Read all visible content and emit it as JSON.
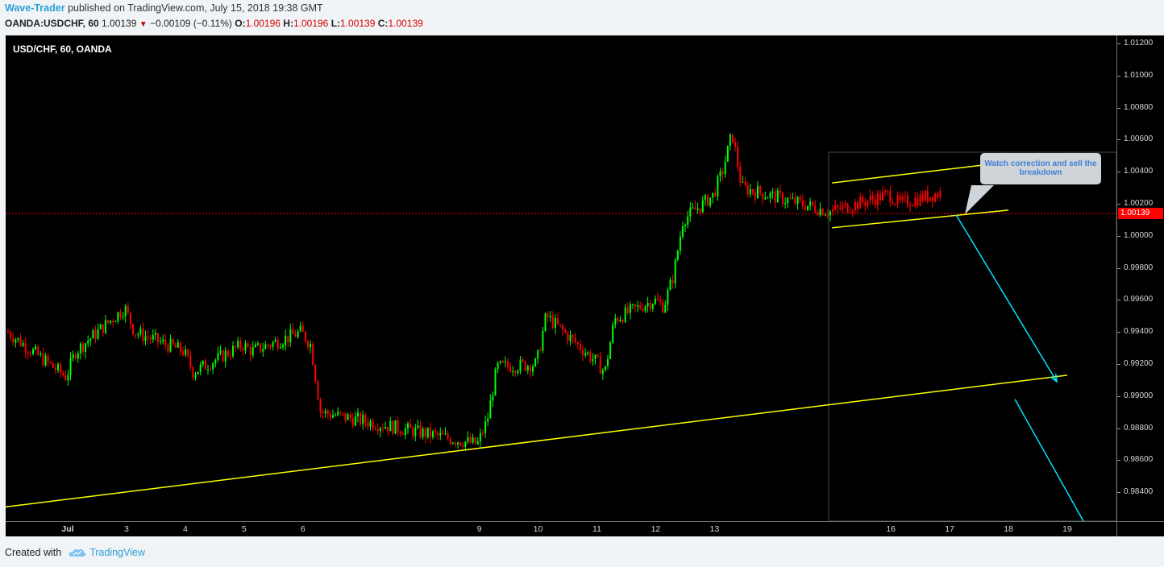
{
  "header": {
    "author": "Wave-Trader",
    "published": "published on TradingView.com, July 15, 2018 19:38 GMT",
    "symbol": "OANDA:USDCHF, 60",
    "last": "1.00139",
    "change": "−0.00109 (−0.11%)",
    "o_label": "O:",
    "o_value": "1.00196",
    "h_label": "H:",
    "h_value": "1.00196",
    "l_label": "L:",
    "l_value": "1.00139",
    "c_label": "C:",
    "c_value": "1.00139"
  },
  "chart_data": {
    "type": "candlestick",
    "title": "USD/CHF, 60, OANDA",
    "timeframe": "60",
    "current_price": 1.00139,
    "current_price_label": "1.00139",
    "ylim": [
      0.9822,
      1.0125
    ],
    "y_ticks": [
      "1.01200",
      "1.01000",
      "1.00800",
      "1.00600",
      "1.00400",
      "1.00200",
      "1.00000",
      "0.99800",
      "0.99600",
      "0.99400",
      "0.99200",
      "0.99000",
      "0.98800",
      "0.98600",
      "0.98400"
    ],
    "x_ticks": [
      {
        "label": "Jul",
        "date": "2018-07-02",
        "bold": true
      },
      {
        "label": "3",
        "date": "2018-07-03",
        "bold": false
      },
      {
        "label": "4",
        "date": "2018-07-04",
        "bold": false
      },
      {
        "label": "5",
        "date": "2018-07-05",
        "bold": false
      },
      {
        "label": "6",
        "date": "2018-07-06",
        "bold": false
      },
      {
        "label": "9",
        "date": "2018-07-09",
        "bold": false
      },
      {
        "label": "10",
        "date": "2018-07-10",
        "bold": false
      },
      {
        "label": "11",
        "date": "2018-07-11",
        "bold": false
      },
      {
        "label": "12",
        "date": "2018-07-12",
        "bold": false
      },
      {
        "label": "13",
        "date": "2018-07-13",
        "bold": false
      },
      {
        "label": "16",
        "date": "2018-07-16",
        "bold": false
      },
      {
        "label": "17",
        "date": "2018-07-17",
        "bold": false
      },
      {
        "label": "18",
        "date": "2018-07-18",
        "bold": false
      },
      {
        "label": "19",
        "date": "2018-07-19",
        "bold": false
      }
    ],
    "price_path": [
      {
        "date": "2018-07-01",
        "price": 0.994
      },
      {
        "date": "2018-07-02",
        "price": 0.9912
      },
      {
        "date": "2018-07-02",
        "price": 0.9928
      },
      {
        "date": "2018-07-03",
        "price": 0.9955
      },
      {
        "date": "2018-07-03",
        "price": 0.994
      },
      {
        "date": "2018-07-04",
        "price": 0.9928
      },
      {
        "date": "2018-07-04",
        "price": 0.9915
      },
      {
        "date": "2018-07-05",
        "price": 0.9932
      },
      {
        "date": "2018-07-05",
        "price": 0.9928
      },
      {
        "date": "2018-07-06",
        "price": 0.994
      },
      {
        "date": "2018-07-06",
        "price": 0.9932
      },
      {
        "date": "2018-07-06",
        "price": 0.989
      },
      {
        "date": "2018-07-09",
        "price": 0.987
      },
      {
        "date": "2018-07-09",
        "price": 0.9885
      },
      {
        "date": "2018-07-09",
        "price": 0.9918
      },
      {
        "date": "2018-07-10",
        "price": 0.992
      },
      {
        "date": "2018-07-10",
        "price": 0.995
      },
      {
        "date": "2018-07-11",
        "price": 0.9922
      },
      {
        "date": "2018-07-11",
        "price": 0.9915
      },
      {
        "date": "2018-07-11",
        "price": 0.9948
      },
      {
        "date": "2018-07-12",
        "price": 0.996
      },
      {
        "date": "2018-07-12",
        "price": 0.9956
      },
      {
        "date": "2018-07-12",
        "price": 0.9975
      },
      {
        "date": "2018-07-12",
        "price": 1.001
      },
      {
        "date": "2018-07-13",
        "price": 1.0025
      },
      {
        "date": "2018-07-13",
        "price": 1.004
      },
      {
        "date": "2018-07-13",
        "price": 1.0064
      },
      {
        "date": "2018-07-13",
        "price": 1.003
      },
      {
        "date": "2018-07-15",
        "price": 1.0015
      },
      {
        "date": "2018-07-16",
        "price": 1.0026
      },
      {
        "date": "2018-07-16",
        "price": 1.002
      },
      {
        "date": "2018-07-17",
        "price": 1.0028
      },
      {
        "date": "2018-07-17",
        "price": 1.0032
      }
    ],
    "trendlines": [
      {
        "name": "long-term support",
        "from": {
          "date": "2018-06-29",
          "price": 0.9822
        },
        "to": {
          "date": "2018-07-19",
          "price": 0.9913
        }
      },
      {
        "name": "channel upper",
        "from": {
          "date": "2018-07-15",
          "price": 1.0033
        },
        "to": {
          "date": "2018-07-18",
          "price": 1.0046
        }
      },
      {
        "name": "channel lower",
        "from": {
          "date": "2018-07-15",
          "price": 1.0005
        },
        "to": {
          "date": "2018-07-18",
          "price": 1.0016
        }
      }
    ],
    "forecast_arrows": [
      {
        "from": {
          "date": "2018-07-17",
          "price": 1.0013
        },
        "to": {
          "date": "2018-07-18",
          "price": 0.9909
        }
      },
      {
        "from": {
          "date": "2018-07-18",
          "price": 0.9898
        },
        "to": {
          "date": "2018-07-19",
          "price": 0.9822
        }
      }
    ],
    "annotation": "Watch correction and sell the breakdown",
    "colors": {
      "up": "#00ff00",
      "down": "#ff0000",
      "trendline": "#ffff00",
      "arrow": "#00e5ff",
      "background": "#000000",
      "last_price_tag": "#ff0000"
    }
  },
  "footer": {
    "created_with": "Created with",
    "brand": "TradingView"
  }
}
